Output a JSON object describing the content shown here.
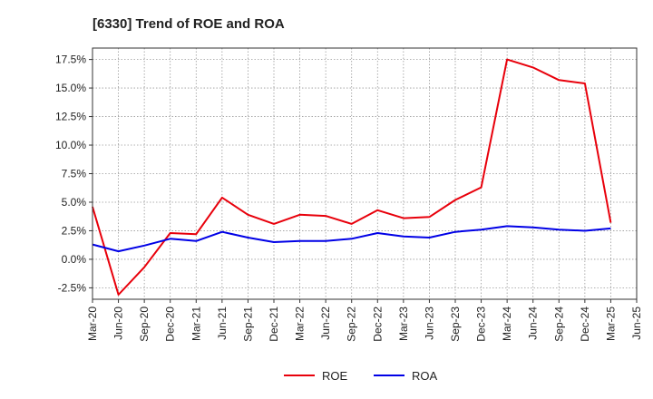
{
  "chart_data": {
    "type": "line",
    "title": "[6330]  Trend of ROE and ROA",
    "xlabel": "",
    "ylabel": "",
    "x": [
      "Mar-20",
      "Jun-20",
      "Sep-20",
      "Dec-20",
      "Mar-21",
      "Jun-21",
      "Sep-21",
      "Dec-21",
      "Mar-22",
      "Jun-22",
      "Sep-22",
      "Dec-22",
      "Mar-23",
      "Jun-23",
      "Sep-23",
      "Dec-23",
      "Mar-24",
      "Jun-24",
      "Sep-24",
      "Dec-24",
      "Mar-25",
      "Jun-25"
    ],
    "ylim": [
      -3.5,
      18.5
    ],
    "yticks": [
      -2.5,
      0.0,
      2.5,
      5.0,
      7.5,
      10.0,
      12.5,
      15.0,
      17.5
    ],
    "ytick_labels": [
      "-2.5%",
      "0.0%",
      "2.5%",
      "5.0%",
      "7.5%",
      "10.0%",
      "12.5%",
      "15.0%",
      "17.5%"
    ],
    "grid": true,
    "legend_position": "bottom-center",
    "series": [
      {
        "name": "ROE",
        "color": "#e8000b",
        "values": [
          4.6,
          -3.1,
          -0.7,
          2.3,
          2.2,
          5.4,
          3.9,
          3.1,
          3.9,
          3.8,
          3.1,
          4.3,
          3.6,
          3.7,
          5.2,
          6.3,
          17.5,
          16.8,
          15.7,
          15.4,
          3.2,
          null
        ]
      },
      {
        "name": "ROA",
        "color": "#0000e6",
        "values": [
          1.3,
          0.7,
          1.2,
          1.8,
          1.6,
          2.4,
          1.9,
          1.5,
          1.6,
          1.6,
          1.8,
          2.3,
          2.0,
          1.9,
          2.4,
          2.6,
          2.9,
          2.8,
          2.6,
          2.5,
          2.7,
          null
        ]
      }
    ]
  }
}
